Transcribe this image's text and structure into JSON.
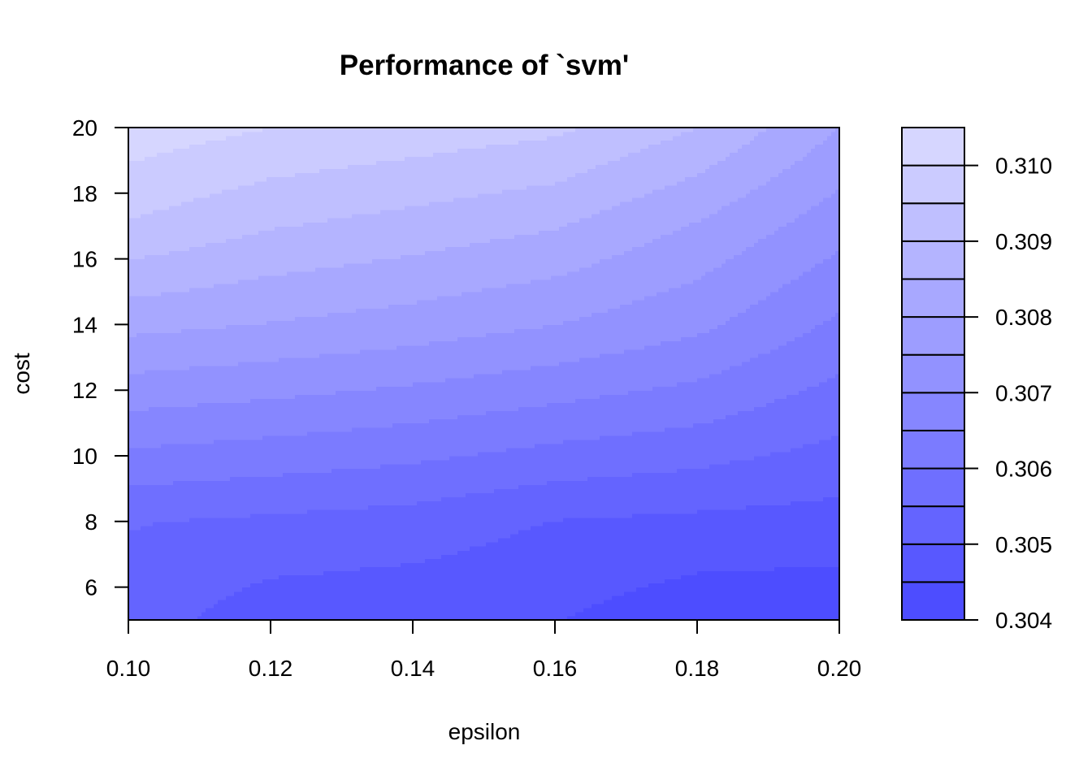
{
  "chart_data": {
    "type": "heatmap",
    "subtype": "filled-contour",
    "title": "Performance of `svm'",
    "xlabel": "epsilon",
    "ylabel": "cost",
    "xlim": [
      0.1,
      0.2
    ],
    "ylim": [
      5,
      20
    ],
    "x_ticks": [
      "0.10",
      "0.12",
      "0.14",
      "0.16",
      "0.18",
      "0.20"
    ],
    "y_ticks": [
      "6",
      "8",
      "10",
      "12",
      "14",
      "16",
      "18",
      "20"
    ],
    "x": [
      0.1,
      0.12,
      0.14,
      0.16,
      0.18,
      0.2
    ],
    "y": [
      5,
      8,
      11,
      14,
      17,
      20
    ],
    "z": [
      [
        0.30525,
        0.3047,
        0.30462,
        0.30452,
        0.30415,
        0.30412
      ],
      [
        0.30553,
        0.3054,
        0.30528,
        0.30498,
        0.30488,
        0.3048
      ],
      [
        0.30683,
        0.30668,
        0.3065,
        0.30625,
        0.30602,
        0.3056
      ],
      [
        0.30815,
        0.30797,
        0.30777,
        0.3075,
        0.30712,
        0.3064
      ],
      [
        0.30945,
        0.30903,
        0.3088,
        0.30853,
        0.30795,
        0.3072
      ],
      [
        0.3103,
        0.31,
        0.3098,
        0.3096,
        0.309,
        0.308
      ]
    ],
    "levels": [
      0.304,
      0.3045,
      0.305,
      0.3055,
      0.306,
      0.3065,
      0.307,
      0.3075,
      0.308,
      0.3085,
      0.309,
      0.3095,
      0.31,
      0.3105
    ],
    "colorbar_ticks": [
      "0.304",
      "0.305",
      "0.306",
      "0.307",
      "0.308",
      "0.309",
      "0.310"
    ],
    "colorbar_tick_values": [
      0.304,
      0.305,
      0.306,
      0.307,
      0.308,
      0.309,
      0.31
    ],
    "color_low": "#4d4dff",
    "color_high": "#d6d6ff",
    "legend": "colorbar-right"
  }
}
